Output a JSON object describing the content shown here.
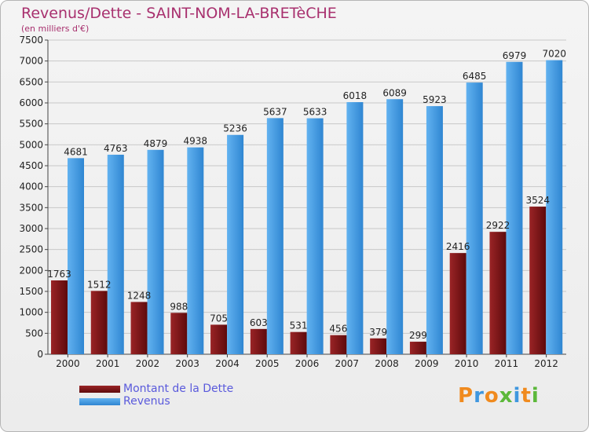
{
  "title": "Revenus/Dette - SAINT-NOM-LA-BRETèCHE",
  "subtitle": "(en milliers d'€)",
  "colors": {
    "dette": "#7a1416",
    "revenus": "#3f97df",
    "title": "#a8306e",
    "legend_text": "#5a5adc"
  },
  "legend": [
    {
      "label": "Montant de la Dette",
      "color": "#7a1416"
    },
    {
      "label": "Revenus",
      "color": "#3f97df"
    }
  ],
  "logo": {
    "text": "Proxiti"
  },
  "chart_data": {
    "type": "bar",
    "title": "Revenus/Dette - SAINT-NOM-LA-BRETèCHE",
    "subtitle": "(en milliers d'€)",
    "xlabel": "",
    "ylabel": "",
    "ylim": [
      0,
      7500
    ],
    "ytick_step": 500,
    "grid": true,
    "legend_position": "bottom-left",
    "categories": [
      "2000",
      "2001",
      "2002",
      "2003",
      "2004",
      "2005",
      "2006",
      "2007",
      "2008",
      "2009",
      "2010",
      "2011",
      "2012"
    ],
    "series": [
      {
        "name": "Montant de la Dette",
        "values": [
          1763,
          1512,
          1248,
          988,
          705,
          603,
          531,
          456,
          379,
          299,
          2416,
          2922,
          3524
        ]
      },
      {
        "name": "Revenus",
        "values": [
          4681,
          4763,
          4879,
          4938,
          5236,
          5637,
          5633,
          6018,
          6089,
          5923,
          6485,
          6979,
          7020
        ]
      }
    ]
  }
}
